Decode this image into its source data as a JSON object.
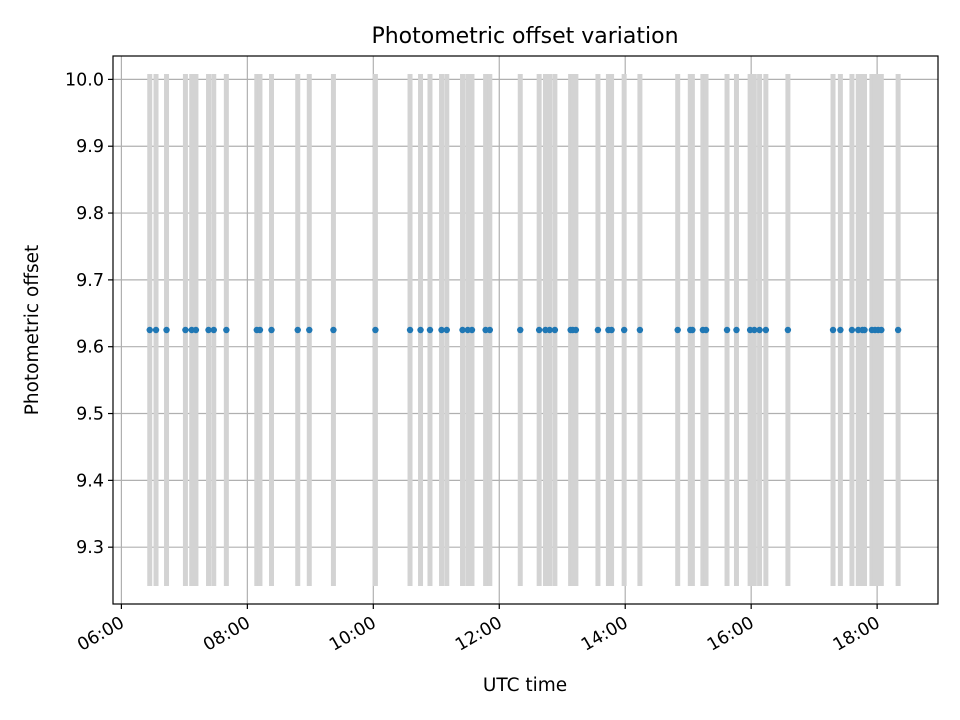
{
  "chart_data": {
    "type": "scatter",
    "title": "Photometric offset variation",
    "xlabel": "UTC time",
    "ylabel": "Photometric offset",
    "xlim": [
      "05:52",
      "18:58"
    ],
    "ylim": [
      9.215,
      10.035
    ],
    "x_ticks": [
      "06:00",
      "08:00",
      "10:00",
      "12:00",
      "14:00",
      "16:00",
      "18:00"
    ],
    "y_ticks": [
      "9.3",
      "9.4",
      "9.5",
      "9.6",
      "9.7",
      "9.8",
      "9.9",
      "10.0"
    ],
    "grid": true,
    "colors": {
      "points": "#1f77b4",
      "bars": "#d3d3d3",
      "grid": "#b0b0b0"
    },
    "vertical_bars": {
      "ymin": 9.242,
      "ymax": 10.008,
      "x": [
        "06:27",
        "06:33",
        "06:43",
        "07:01",
        "07:07",
        "07:11",
        "07:23",
        "07:28",
        "07:40",
        "08:09",
        "08:12",
        "08:23",
        "08:48",
        "08:59",
        "09:22",
        "10:02",
        "10:35",
        "10:45",
        "10:54",
        "11:05",
        "11:10",
        "11:25",
        "11:30",
        "11:34",
        "11:47",
        "11:51",
        "12:20",
        "12:38",
        "12:44",
        "12:48",
        "12:53",
        "13:08",
        "13:10",
        "13:13",
        "13:34",
        "13:44",
        "13:47",
        "13:59",
        "14:14",
        "14:50",
        "15:02",
        "15:04",
        "15:14",
        "15:17",
        "15:37",
        "15:46",
        "15:59",
        "16:03",
        "16:08",
        "16:14",
        "16:35",
        "17:18",
        "17:25",
        "17:36",
        "17:42",
        "17:46",
        "17:48",
        "17:55",
        "17:58",
        "18:01",
        "18:04",
        "18:20"
      ]
    },
    "series": [
      {
        "x": [
          "06:27",
          "06:33",
          "06:43",
          "07:01",
          "07:07",
          "07:11",
          "07:23",
          "07:28",
          "07:40",
          "08:09",
          "08:12",
          "08:23",
          "08:48",
          "08:59",
          "09:22",
          "10:02",
          "10:35",
          "10:45",
          "10:54",
          "11:05",
          "11:10",
          "11:25",
          "11:30",
          "11:34",
          "11:47",
          "11:51",
          "12:20",
          "12:38",
          "12:44",
          "12:48",
          "12:53",
          "13:08",
          "13:10",
          "13:13",
          "13:34",
          "13:44",
          "13:47",
          "13:59",
          "14:14",
          "14:50",
          "15:02",
          "15:04",
          "15:14",
          "15:17",
          "15:37",
          "15:46",
          "15:59",
          "16:03",
          "16:08",
          "16:14",
          "16:35",
          "17:18",
          "17:25",
          "17:36",
          "17:42",
          "17:46",
          "17:48",
          "17:55",
          "17:58",
          "18:01",
          "18:04",
          "18:20"
        ],
        "y": [
          9.625,
          9.625,
          9.625,
          9.625,
          9.625,
          9.625,
          9.625,
          9.625,
          9.625,
          9.625,
          9.625,
          9.625,
          9.625,
          9.625,
          9.625,
          9.625,
          9.625,
          9.625,
          9.625,
          9.625,
          9.625,
          9.625,
          9.625,
          9.625,
          9.625,
          9.625,
          9.625,
          9.625,
          9.625,
          9.625,
          9.625,
          9.625,
          9.625,
          9.625,
          9.625,
          9.625,
          9.625,
          9.625,
          9.625,
          9.625,
          9.625,
          9.625,
          9.625,
          9.625,
          9.625,
          9.625,
          9.625,
          9.625,
          9.625,
          9.625,
          9.625,
          9.625,
          9.625,
          9.625,
          9.625,
          9.625,
          9.625,
          9.625,
          9.625,
          9.625,
          9.625,
          9.625
        ]
      }
    ]
  }
}
